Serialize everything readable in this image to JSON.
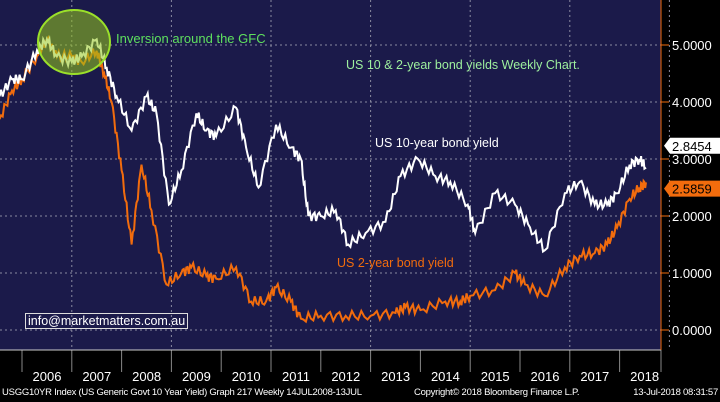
{
  "chart_data": {
    "type": "line",
    "title": "US 10 & 2-year bond yields Weekly Chart.",
    "annotation": "Inversion around the GFC",
    "watermark": "info@marketmatters.com.au",
    "xlabel": "",
    "ylabel": "",
    "xlim": [
      2005.55,
      2018.7
    ],
    "ylim": [
      -0.3,
      5.75
    ],
    "x_tick_labels": [
      "2006",
      "2007",
      "2008",
      "2009",
      "2010",
      "2011",
      "2012",
      "2013",
      "2014",
      "2015",
      "2016",
      "2017",
      "2018"
    ],
    "y_ticks": [
      0,
      1,
      2,
      3,
      4,
      5
    ],
    "y_tick_labels": [
      "0.0000",
      "1.0000",
      "2.0000",
      "3.0000",
      "4.0000",
      "5.0000"
    ],
    "grid": true,
    "series": [
      {
        "name": "US 10-year bond yield",
        "color": "#ffffff",
        "last_value": "2.8454",
        "x": [
          2005.55,
          2005.8,
          2006.0,
          2006.3,
          2006.5,
          2006.7,
          2007.0,
          2007.2,
          2007.5,
          2007.7,
          2007.9,
          2008.2,
          2008.5,
          2008.7,
          2008.95,
          2009.2,
          2009.5,
          2009.7,
          2009.9,
          2010.3,
          2010.5,
          2010.75,
          2011.1,
          2011.4,
          2011.6,
          2011.75,
          2012.0,
          2012.3,
          2012.55,
          2012.9,
          2013.3,
          2013.6,
          2013.95,
          2014.3,
          2014.6,
          2014.95,
          2015.1,
          2015.5,
          2015.9,
          2016.2,
          2016.5,
          2016.9,
          2017.2,
          2017.5,
          2017.75,
          2017.95,
          2018.2,
          2018.4,
          2018.53
        ],
        "y": [
          4.1,
          4.4,
          4.4,
          4.9,
          5.1,
          4.8,
          4.7,
          4.8,
          5.1,
          4.6,
          4.1,
          3.5,
          4.1,
          3.8,
          2.2,
          2.8,
          3.8,
          3.5,
          3.4,
          3.9,
          3.2,
          2.5,
          3.6,
          3.2,
          3.0,
          2.0,
          2.0,
          2.1,
          1.5,
          1.7,
          1.9,
          2.7,
          3.0,
          2.7,
          2.6,
          2.2,
          1.7,
          2.4,
          2.2,
          1.8,
          1.4,
          2.4,
          2.6,
          2.2,
          2.2,
          2.4,
          2.9,
          3.0,
          2.85
        ]
      },
      {
        "name": "US 2-year bond yield",
        "color": "#f26c0d",
        "last_value": "2.5859",
        "x": [
          2005.55,
          2005.8,
          2006.0,
          2006.3,
          2006.5,
          2006.7,
          2007.0,
          2007.2,
          2007.5,
          2007.65,
          2007.8,
          2008.0,
          2008.2,
          2008.4,
          2008.6,
          2008.9,
          2009.2,
          2009.4,
          2009.7,
          2009.9,
          2010.3,
          2010.6,
          2010.9,
          2011.1,
          2011.4,
          2011.6,
          2012.0,
          2012.5,
          2013.0,
          2013.5,
          2013.7,
          2014.0,
          2014.5,
          2014.8,
          2015.0,
          2015.5,
          2015.9,
          2016.1,
          2016.5,
          2016.9,
          2017.2,
          2017.5,
          2017.75,
          2017.95,
          2018.2,
          2018.4,
          2018.53
        ],
        "y": [
          3.7,
          4.2,
          4.4,
          4.8,
          5.1,
          4.8,
          4.8,
          4.7,
          4.9,
          4.5,
          4.0,
          2.8,
          1.5,
          2.9,
          2.1,
          0.8,
          1.0,
          1.1,
          0.95,
          0.9,
          1.1,
          0.5,
          0.5,
          0.75,
          0.5,
          0.2,
          0.25,
          0.25,
          0.25,
          0.3,
          0.4,
          0.35,
          0.5,
          0.5,
          0.6,
          0.7,
          1.0,
          0.8,
          0.6,
          1.1,
          1.3,
          1.35,
          1.5,
          1.8,
          2.3,
          2.5,
          2.59
        ]
      }
    ]
  },
  "labels": {
    "series10": "US 10-year bond yield",
    "series2": "US 2-year bond yield"
  },
  "footer": {
    "left": "USGG10YR Index (US Generic Govt 10 Year Yield) Graph 217  Weekly 14JUL2008-13JUL",
    "center": "Copyright© 2018 Bloomberg Finance L.P.",
    "right": "13-Jul-2018 08:31:57"
  }
}
